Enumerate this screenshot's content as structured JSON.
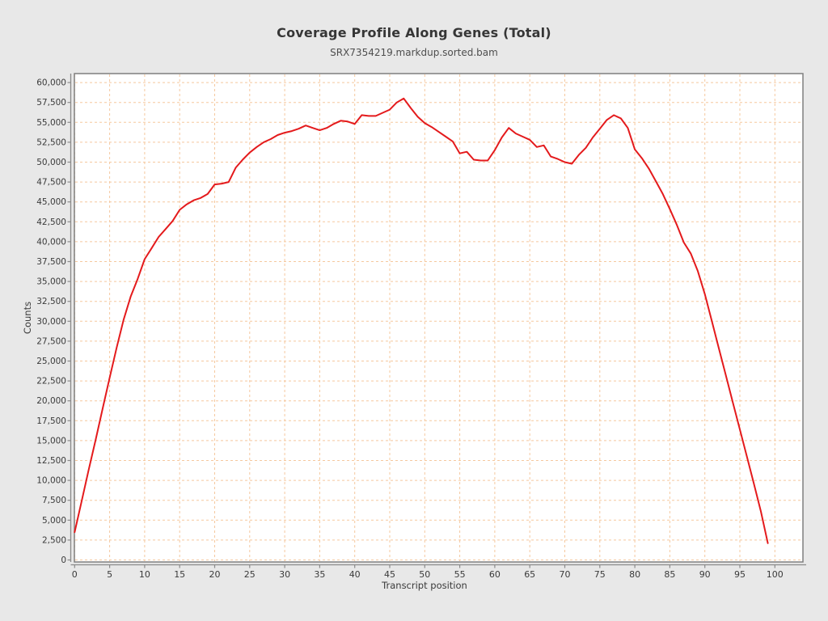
{
  "page": {
    "background": "#e8e8e8"
  },
  "chart_data": {
    "type": "line",
    "title": "Coverage Profile Along Genes (Total)",
    "subtitle": "SRX7354219.markdup.sorted.bam",
    "xlabel": "Transcript position",
    "ylabel": "Counts",
    "legend": "none",
    "grid": true,
    "x_start": 0,
    "x_step": 1,
    "values": [
      3500,
      7400,
      11300,
      15100,
      19000,
      22900,
      26700,
      30200,
      33100,
      35300,
      37800,
      39200,
      40600,
      41600,
      42600,
      44000,
      44700,
      45200,
      45500,
      46000,
      47200,
      47300,
      47500,
      49300,
      50300,
      51200,
      51900,
      52500,
      52900,
      53400,
      53700,
      53900,
      54200,
      54600,
      54300,
      54000,
      54300,
      54800,
      55200,
      55100,
      54800,
      55900,
      55800,
      55800,
      56200,
      56600,
      57500,
      58000,
      56800,
      55700,
      54900,
      54400,
      53800,
      53200,
      52600,
      51100,
      51300,
      50300,
      50200,
      50200,
      51500,
      53100,
      54300,
      53600,
      53200,
      52800,
      51900,
      52100,
      50700,
      50400,
      50000,
      49800,
      50900,
      51800,
      53100,
      54200,
      55300,
      55900,
      55500,
      54300,
      51600,
      50500,
      49200,
      47600,
      46000,
      44100,
      42100,
      39900,
      38500,
      36300,
      33400,
      30000,
      26600,
      23200,
      19800,
      16400,
      13000,
      9600,
      6100,
      2100
    ],
    "xlim": [
      0,
      104
    ],
    "ylim": [
      0,
      61500
    ],
    "x_tick_min": 0,
    "x_tick_max": 100,
    "x_tick_step": 5,
    "y_tick_min": 0,
    "y_tick_max": 60000,
    "y_tick_step": 2500,
    "line_color": "#e41a1c",
    "grid_color": "#f5c89e",
    "axis_color": "#8a8a8a",
    "border_color": "#7f7f7f",
    "plot_bg": "#ffffff",
    "tick_text_color": "#3a3a3a"
  }
}
